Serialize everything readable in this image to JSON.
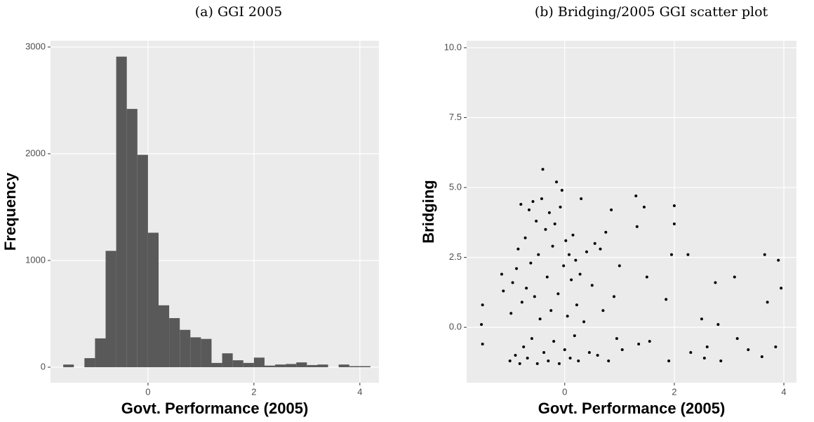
{
  "chart_data": [
    {
      "type": "histogram",
      "title": "(a) GGI 2005",
      "x_label": "Govt. Performance (2005)",
      "y_label": "Frequency",
      "bins": [
        -1.6,
        -1.4,
        -1.2,
        -1.0,
        -0.8,
        -0.6,
        -0.4,
        -0.2,
        0,
        0.2,
        0.4,
        0.6,
        0.8,
        1.0,
        1.2,
        1.4,
        1.6,
        1.8,
        2.0,
        2.2,
        2.4,
        2.6,
        2.8,
        3.0,
        3.2,
        3.4,
        3.6,
        3.8,
        4.0,
        4.2
      ],
      "counts": [
        25,
        0,
        85,
        270,
        1090,
        2910,
        2420,
        1990,
        1260,
        580,
        460,
        350,
        280,
        265,
        40,
        130,
        65,
        40,
        90,
        15,
        25,
        30,
        45,
        20,
        25,
        0,
        25,
        10,
        10
      ],
      "color": "#595959",
      "xlim": [
        -1.84,
        4.36
      ],
      "xticks": [
        0,
        2,
        4
      ],
      "ylim": [
        -145,
        3059
      ],
      "yticks": [
        0,
        1000,
        2000,
        3000
      ],
      "grid": true
    },
    {
      "type": "scatter",
      "title": "(b) Bridging/2005 GGI scatter plot",
      "x_label": "Govt. Performance (2005)",
      "y_label": "Bridging",
      "x": [
        -1.5,
        -1.5,
        -1.52,
        -1.15,
        -1.12,
        -1.0,
        -0.98,
        -0.95,
        -0.9,
        -0.88,
        -0.85,
        -0.82,
        -0.8,
        -0.78,
        -0.75,
        -0.72,
        -0.7,
        -0.68,
        -0.65,
        -0.62,
        -0.6,
        -0.58,
        -0.55,
        -0.52,
        -0.5,
        -0.48,
        -0.45,
        -0.42,
        -0.4,
        -0.38,
        -0.35,
        -0.32,
        -0.3,
        -0.28,
        -0.25,
        -0.22,
        -0.2,
        -0.18,
        -0.15,
        -0.12,
        -0.1,
        -0.08,
        -0.05,
        -0.02,
        0.0,
        0.02,
        0.05,
        0.08,
        0.1,
        0.12,
        0.15,
        0.18,
        0.2,
        0.22,
        0.25,
        0.28,
        0.3,
        0.35,
        0.4,
        0.45,
        0.5,
        0.55,
        0.6,
        0.65,
        0.7,
        0.75,
        0.8,
        0.85,
        0.9,
        0.95,
        1.0,
        1.05,
        1.3,
        1.32,
        1.35,
        1.45,
        1.5,
        1.55,
        1.85,
        1.9,
        1.95,
        2.0,
        2.0,
        2.25,
        2.3,
        2.5,
        2.55,
        2.6,
        2.75,
        2.8,
        2.85,
        3.1,
        3.15,
        3.35,
        3.6,
        3.65,
        3.7,
        3.85,
        3.9,
        3.95
      ],
      "values": [
        0.8,
        -0.6,
        0.1,
        1.9,
        1.3,
        -1.2,
        0.5,
        1.6,
        -1.0,
        2.1,
        2.8,
        -1.3,
        4.4,
        0.9,
        -0.7,
        3.2,
        1.4,
        -1.1,
        4.2,
        2.3,
        -0.4,
        4.5,
        1.1,
        3.8,
        -1.3,
        2.6,
        0.3,
        4.6,
        5.65,
        -0.9,
        3.5,
        1.8,
        -1.2,
        4.1,
        0.6,
        2.9,
        -0.5,
        3.7,
        5.2,
        1.2,
        -1.3,
        4.3,
        4.9,
        2.2,
        -0.8,
        3.1,
        0.4,
        2.6,
        -1.1,
        1.7,
        3.3,
        -0.3,
        2.4,
        0.8,
        -1.2,
        1.9,
        4.6,
        0.2,
        2.7,
        -0.9,
        1.5,
        3.0,
        -1.0,
        2.8,
        0.6,
        3.4,
        -1.2,
        4.2,
        1.1,
        -0.4,
        2.2,
        -0.8,
        4.7,
        3.6,
        -0.6,
        4.3,
        1.8,
        -0.5,
        1.0,
        -1.2,
        2.6,
        4.35,
        3.7,
        2.6,
        -0.9,
        0.3,
        -1.1,
        -0.7,
        1.6,
        0.1,
        -1.2,
        1.8,
        -0.4,
        -0.8,
        -1.05,
        2.6,
        0.9,
        -0.7,
        2.4,
        1.4
      ],
      "color": "#000000",
      "xlim": [
        -1.79,
        4.23
      ],
      "xticks": [
        0,
        2,
        4
      ],
      "ylim": [
        -1.98,
        10.25
      ],
      "yticks": [
        {
          "value": 0,
          "label": "0.0"
        },
        2.5,
        {
          "value": 5,
          "label": "5.0"
        },
        7.5,
        {
          "value": 10,
          "label": "10.0"
        }
      ],
      "grid": true
    }
  ]
}
